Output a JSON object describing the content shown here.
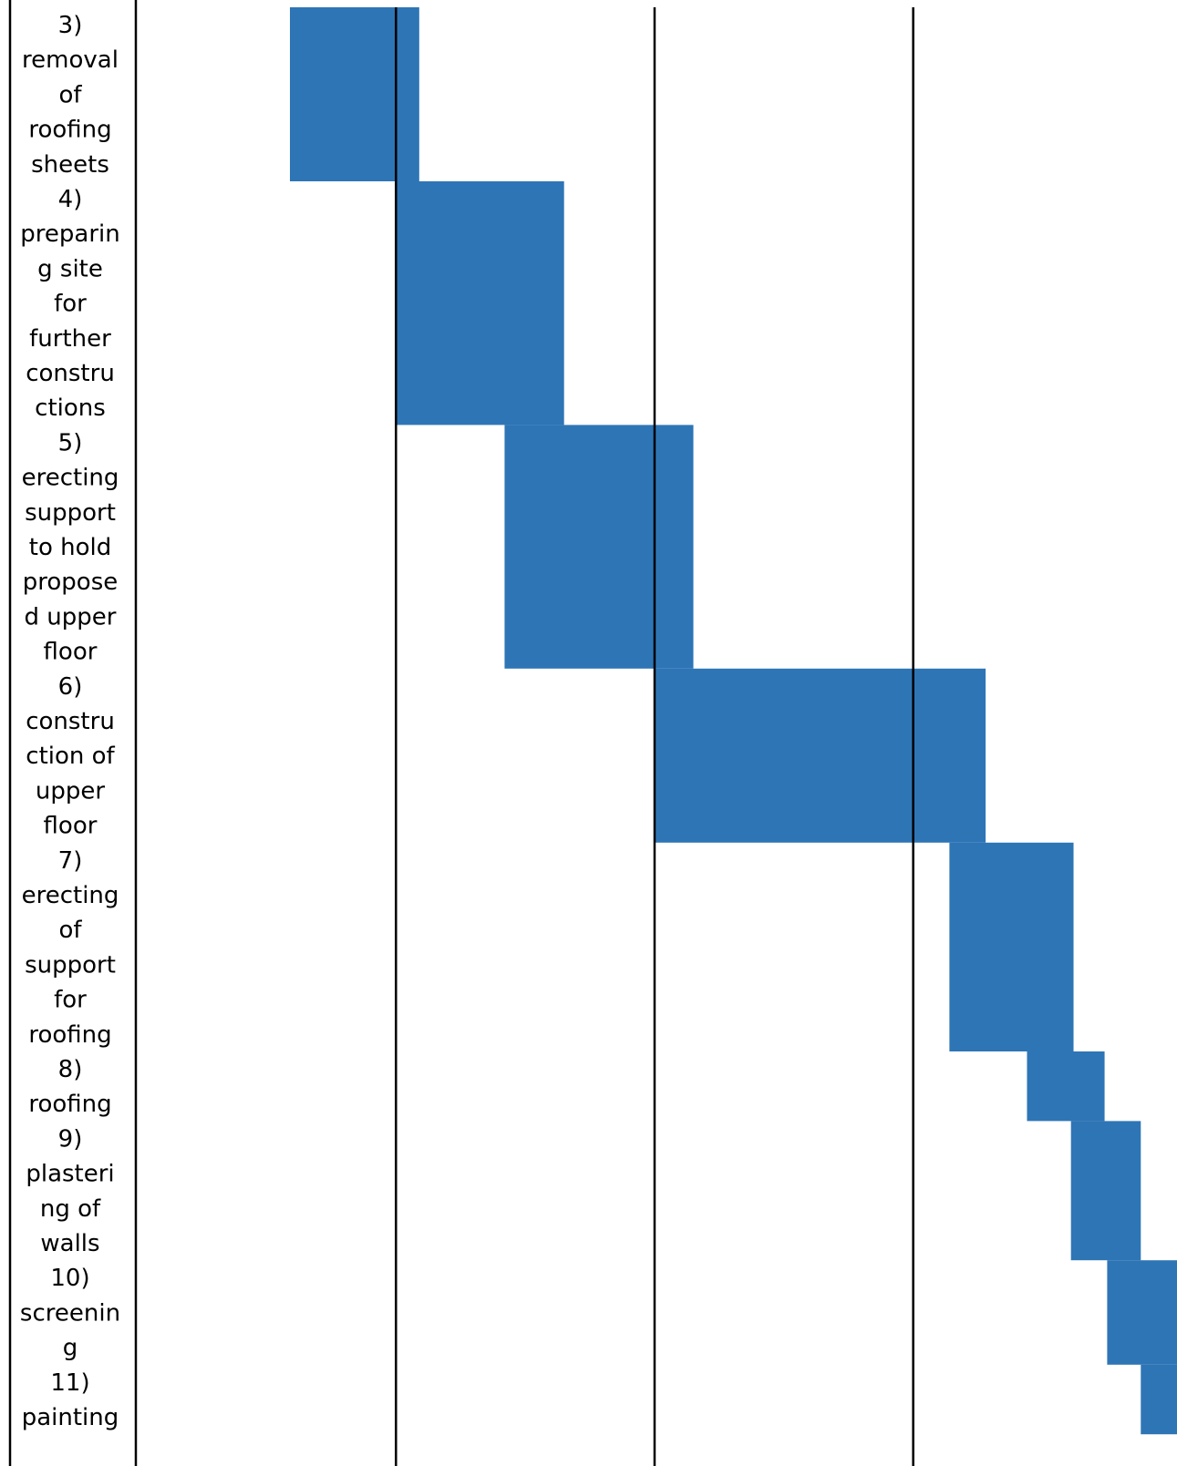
{
  "chart_data": {
    "type": "gantt",
    "bar_color": "#2E75B6",
    "line_color": "#000000",
    "tasks": [
      {
        "label_lines": [
          "3)",
          "removal",
          "of",
          "roofing",
          "sheets"
        ],
        "start": 0.0,
        "end": 0.5
      },
      {
        "label_lines": [
          "4)",
          "preparin",
          "g site",
          "for",
          "further",
          "constru",
          "ctions"
        ],
        "start": 0.41,
        "end": 1.06
      },
      {
        "label_lines": [
          "5)",
          "erecting",
          "support",
          "to hold",
          "propose",
          "d upper",
          "floor"
        ],
        "start": 0.83,
        "end": 1.56
      },
      {
        "label_lines": [
          "6)",
          "constru",
          "ction of",
          "upper",
          "floor"
        ],
        "start": 1.41,
        "end": 2.69
      },
      {
        "label_lines": [
          "7)",
          "erecting",
          "of",
          "support",
          "for",
          "roofing"
        ],
        "start": 2.55,
        "end": 3.03
      },
      {
        "label_lines": [
          "8)",
          "roofing"
        ],
        "start": 2.85,
        "end": 3.15
      },
      {
        "label_lines": [
          "9)",
          "plasteri",
          "ng of",
          "walls"
        ],
        "start": 3.02,
        "end": 3.29
      },
      {
        "label_lines": [
          "10)",
          "screenin",
          "g"
        ],
        "start": 3.16,
        "end": 3.43
      },
      {
        "label_lines": [
          "11)",
          "painting"
        ],
        "start": 3.29,
        "end": 3.43
      }
    ],
    "xlim": [
      0,
      3.43
    ],
    "vertical_lines_at": [
      0.41,
      1.41,
      2.41
    ]
  }
}
